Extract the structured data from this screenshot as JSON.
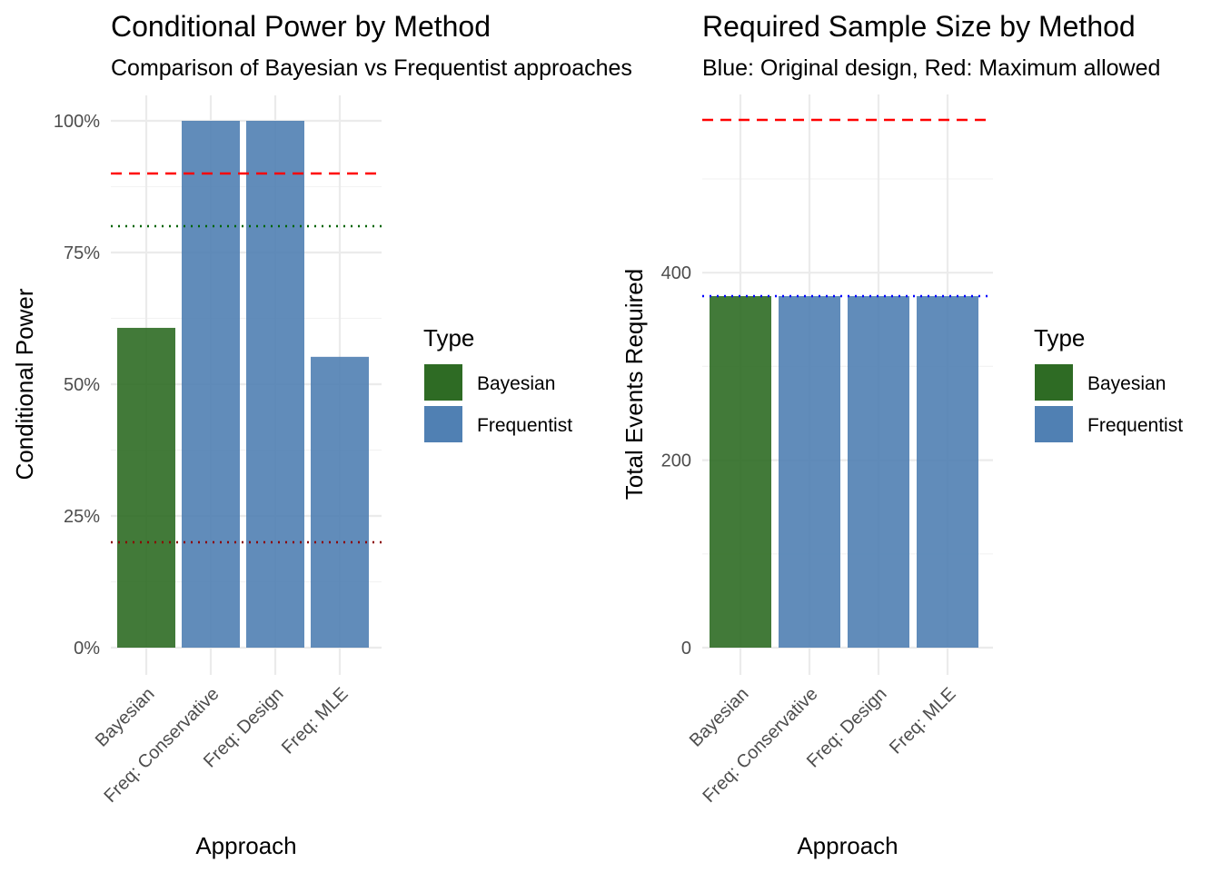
{
  "colors": {
    "Bayesian": "#2e6b24",
    "Frequentist": "#5080b3",
    "red_line": "#ff0000",
    "green_line": "#006400",
    "darkred_line": "#8b0000",
    "blue_line": "#0000ff",
    "grid_major": "#ebebeb",
    "grid_minor": "#f3f3f3"
  },
  "chart_data": [
    {
      "type": "bar",
      "title": "Conditional Power by Method",
      "subtitle": "Comparison of Bayesian vs Frequentist approaches",
      "xlabel": "Approach",
      "ylabel": "Conditional Power",
      "categories": [
        "Bayesian",
        "Freq: Conservative",
        "Freq: Design",
        "Freq: MLE"
      ],
      "category_type": [
        "Bayesian",
        "Frequentist",
        "Frequentist",
        "Frequentist"
      ],
      "values": [
        0.607,
        1.0,
        1.0,
        0.552
      ],
      "ylim": [
        0,
        1
      ],
      "yticks": [
        0,
        0.25,
        0.5,
        0.75,
        1.0
      ],
      "ytick_labels": [
        "0%",
        "25%",
        "50%",
        "75%",
        "100%"
      ],
      "reference_lines": [
        {
          "y": 0.9,
          "style": "dashed",
          "color": "#ff0000"
        },
        {
          "y": 0.8,
          "style": "dotted",
          "color": "#006400"
        },
        {
          "y": 0.2,
          "style": "dotted",
          "color": "#8b0000"
        }
      ],
      "legend": {
        "title": "Type",
        "position": "right",
        "entries": [
          "Bayesian",
          "Frequentist"
        ]
      },
      "grid": true
    },
    {
      "type": "bar",
      "title": "Required Sample Size by Method",
      "subtitle": "Blue: Original design, Red: Maximum allowed",
      "xlabel": "Approach",
      "ylabel": "Total Events Required",
      "categories": [
        "Bayesian",
        "Freq: Conservative",
        "Freq: Design",
        "Freq: MLE"
      ],
      "category_type": [
        "Bayesian",
        "Frequentist",
        "Frequentist",
        "Frequentist"
      ],
      "values": [
        375,
        375,
        375,
        375
      ],
      "ylim": [
        0,
        563
      ],
      "yticks": [
        0,
        200,
        400
      ],
      "ytick_labels": [
        "0",
        "200",
        "400"
      ],
      "reference_lines": [
        {
          "y": 563,
          "style": "dashed",
          "color": "#ff0000"
        },
        {
          "y": 375,
          "style": "dotted",
          "color": "#0000ff"
        }
      ],
      "legend": {
        "title": "Type",
        "position": "right",
        "entries": [
          "Bayesian",
          "Frequentist"
        ]
      },
      "grid": true
    }
  ]
}
